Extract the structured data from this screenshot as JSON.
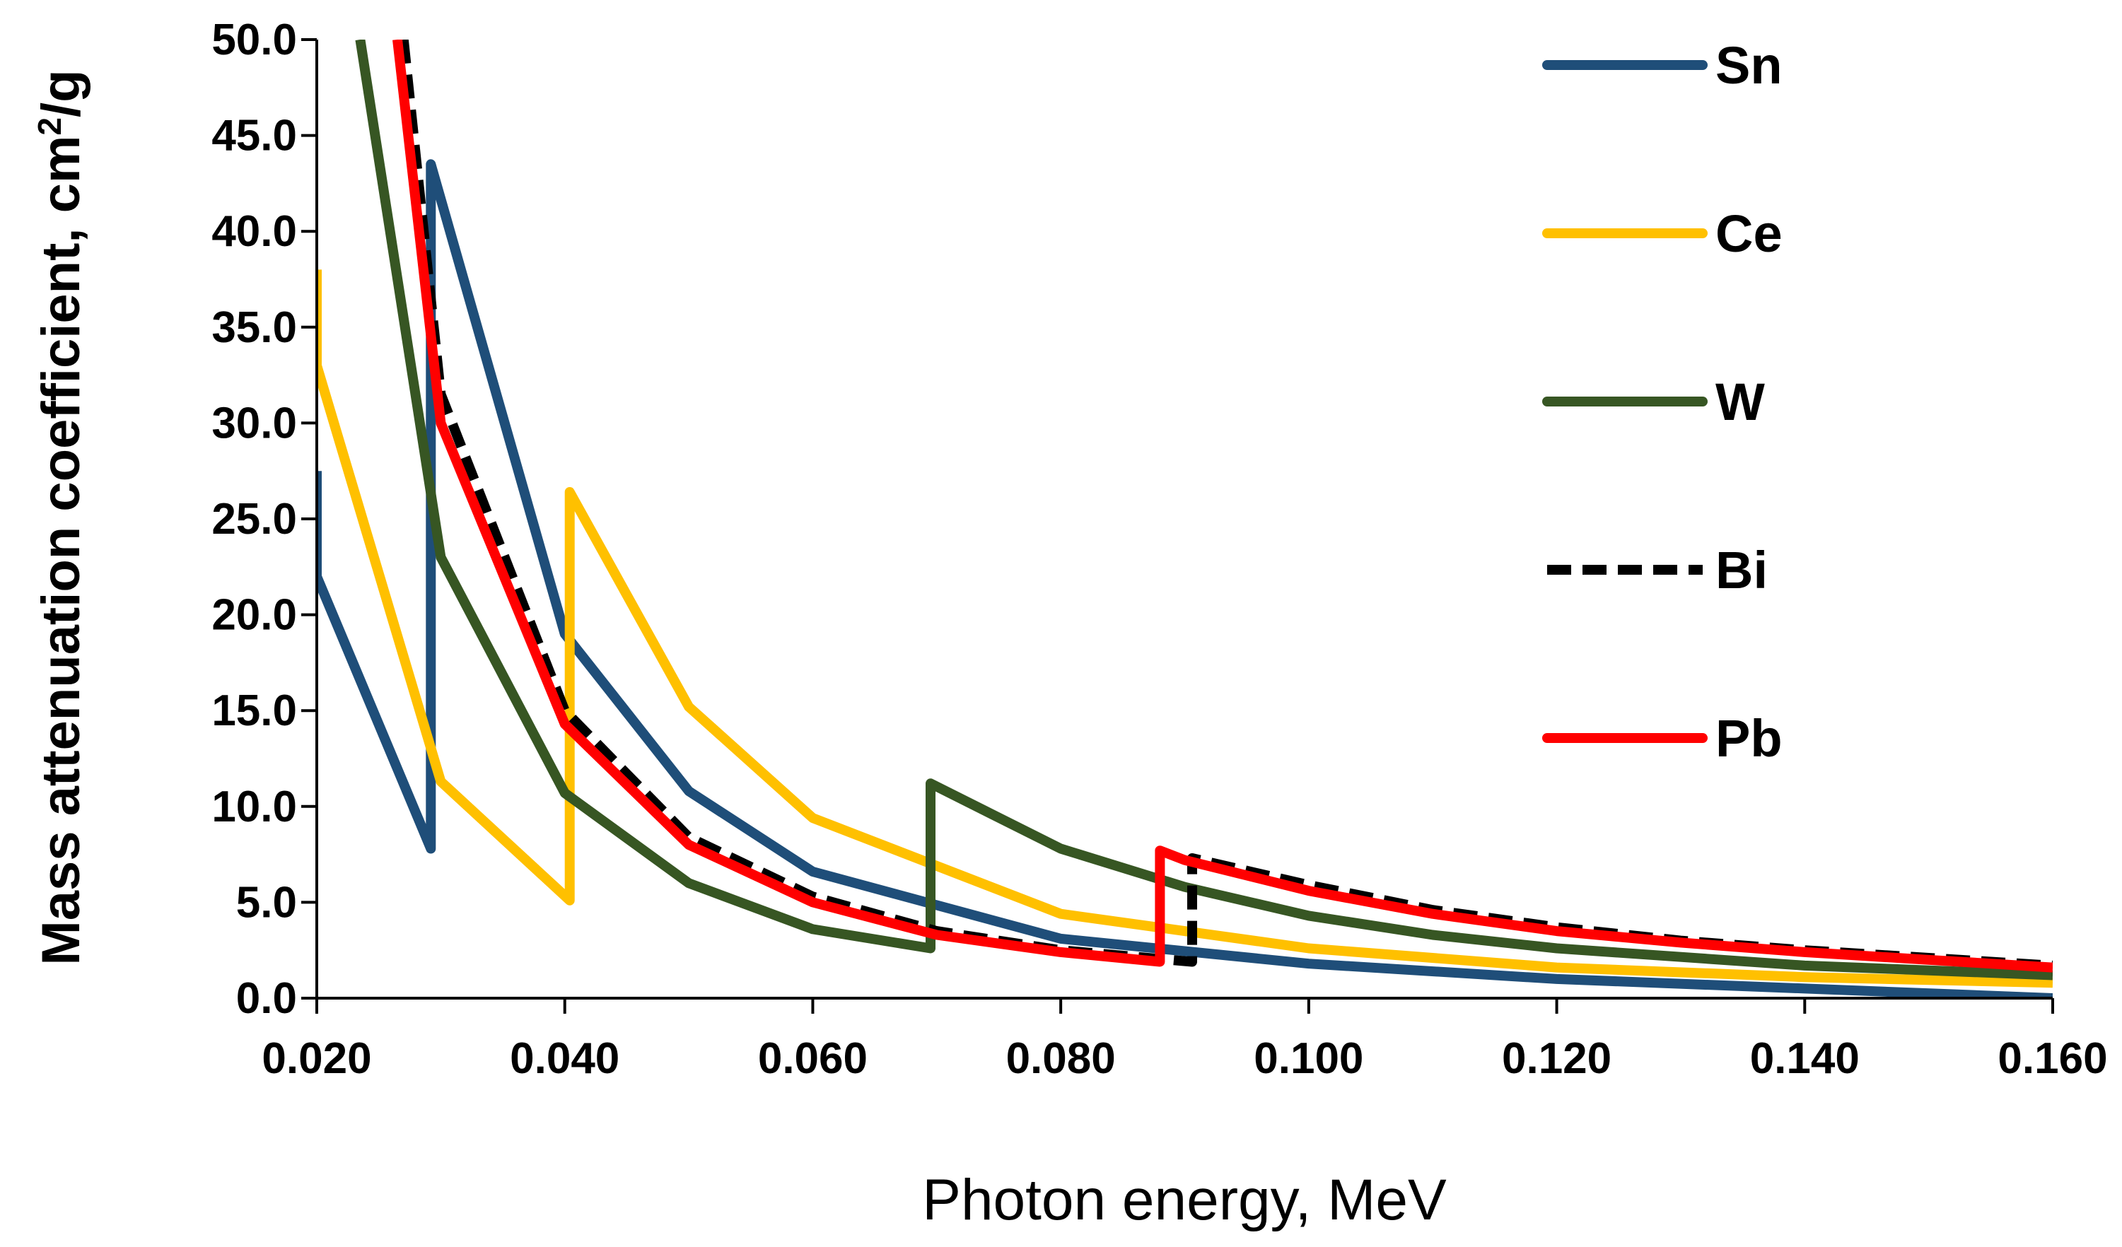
{
  "chart_data": {
    "type": "line",
    "title": "",
    "xlabel": "Photon energy, MeV",
    "ylabel_main": "Mass attenuation coefficient, cm",
    "ylabel_sup": "2",
    "ylabel_tail": "/g",
    "xlim": [
      0.02,
      0.16
    ],
    "ylim": [
      0,
      50
    ],
    "x_ticks": [
      0.02,
      0.04,
      0.06,
      0.08,
      0.1,
      0.12,
      0.14,
      0.16
    ],
    "x_tick_labels": [
      "0.020",
      "0.040",
      "0.060",
      "0.080",
      "0.100",
      "0.120",
      "0.140",
      "0.160"
    ],
    "y_ticks": [
      0,
      5,
      10,
      15,
      20,
      25,
      30,
      35,
      40,
      45,
      50
    ],
    "y_tick_labels": [
      "0.0",
      "5.0",
      "10.0",
      "15.0",
      "20.0",
      "25.0",
      "30.0",
      "35.0",
      "40.0",
      "45.0",
      "50.0"
    ],
    "grid": false,
    "legend_position": "right",
    "series": [
      {
        "name": "Sn",
        "color": "#1f4e79",
        "dash": false,
        "points": [
          [
            0.02,
            27.5
          ],
          [
            0.02,
            22.0
          ],
          [
            0.0292,
            7.8
          ],
          [
            0.0292,
            43.5
          ],
          [
            0.04,
            19.0
          ],
          [
            0.05,
            10.8
          ],
          [
            0.06,
            6.6
          ],
          [
            0.08,
            3.1
          ],
          [
            0.1,
            1.8
          ],
          [
            0.12,
            1.0
          ],
          [
            0.14,
            0.5
          ],
          [
            0.16,
            0.0
          ]
        ]
      },
      {
        "name": "Ce",
        "color": "#ffc000",
        "dash": false,
        "points": [
          [
            0.02,
            38.0
          ],
          [
            0.02,
            33.0
          ],
          [
            0.03,
            11.3
          ],
          [
            0.0404,
            5.1
          ],
          [
            0.0404,
            26.4
          ],
          [
            0.05,
            15.2
          ],
          [
            0.06,
            9.4
          ],
          [
            0.08,
            4.4
          ],
          [
            0.1,
            2.6
          ],
          [
            0.12,
            1.6
          ],
          [
            0.14,
            1.1
          ],
          [
            0.16,
            0.8
          ]
        ]
      },
      {
        "name": "W",
        "color": "#375623",
        "dash": false,
        "points": [
          [
            0.0235,
            50.0
          ],
          [
            0.03,
            23.0
          ],
          [
            0.04,
            10.7
          ],
          [
            0.05,
            6.0
          ],
          [
            0.06,
            3.6
          ],
          [
            0.0695,
            2.6
          ],
          [
            0.0695,
            11.2
          ],
          [
            0.08,
            7.8
          ],
          [
            0.09,
            5.8
          ],
          [
            0.1,
            4.3
          ],
          [
            0.11,
            3.3
          ],
          [
            0.12,
            2.6
          ],
          [
            0.14,
            1.7
          ],
          [
            0.16,
            1.2
          ]
        ]
      },
      {
        "name": "Bi",
        "color": "#000000",
        "dash": true,
        "points": [
          [
            0.027,
            50.0
          ],
          [
            0.03,
            31.5
          ],
          [
            0.04,
            15.0
          ],
          [
            0.05,
            8.4
          ],
          [
            0.06,
            5.3
          ],
          [
            0.07,
            3.5
          ],
          [
            0.08,
            2.5
          ],
          [
            0.0906,
            1.9
          ],
          [
            0.0906,
            7.3
          ],
          [
            0.1,
            5.9
          ],
          [
            0.11,
            4.6
          ],
          [
            0.12,
            3.7
          ],
          [
            0.13,
            3.0
          ],
          [
            0.14,
            2.5
          ],
          [
            0.15,
            2.1
          ],
          [
            0.16,
            1.7
          ]
        ]
      },
      {
        "name": "Pb",
        "color": "#ff0000",
        "dash": false,
        "points": [
          [
            0.0265,
            50.0
          ],
          [
            0.03,
            30.0
          ],
          [
            0.04,
            14.3
          ],
          [
            0.05,
            8.0
          ],
          [
            0.06,
            5.0
          ],
          [
            0.07,
            3.3
          ],
          [
            0.08,
            2.4
          ],
          [
            0.088,
            1.9
          ],
          [
            0.088,
            7.7
          ],
          [
            0.09,
            7.2
          ],
          [
            0.1,
            5.6
          ],
          [
            0.11,
            4.4
          ],
          [
            0.12,
            3.5
          ],
          [
            0.13,
            2.9
          ],
          [
            0.14,
            2.4
          ],
          [
            0.15,
            2.0
          ],
          [
            0.16,
            1.6
          ]
        ]
      }
    ]
  }
}
